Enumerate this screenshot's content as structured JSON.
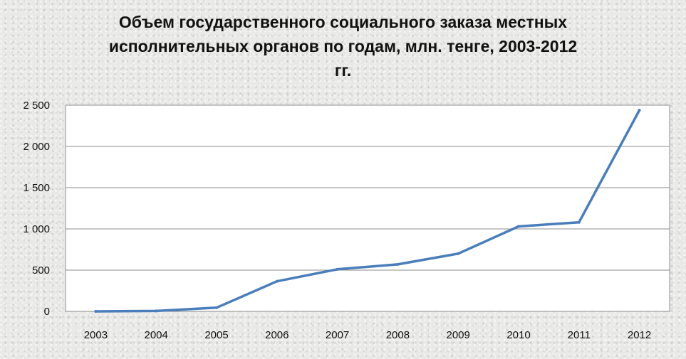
{
  "chart_data": {
    "type": "line",
    "title_lines": [
      "Объем государственного социального заказа местных",
      "исполнительных органов по  годам, млн. тенге, 2003-2012",
      "гг."
    ],
    "categories": [
      "2003",
      "2004",
      "2005",
      "2006",
      "2007",
      "2008",
      "2009",
      "2010",
      "2011",
      "2012"
    ],
    "series": [
      {
        "values": [
          0,
          5,
          45,
          365,
          510,
          570,
          700,
          1030,
          1080,
          2440
        ],
        "color": "#4a7ebb"
      }
    ],
    "y_ticks": [
      "0",
      "500",
      "1 000",
      "1 500",
      "2 000",
      "2 500"
    ],
    "ylim": [
      0,
      2500
    ],
    "grid": true,
    "legend": "none",
    "xlabel": "",
    "ylabel": ""
  }
}
